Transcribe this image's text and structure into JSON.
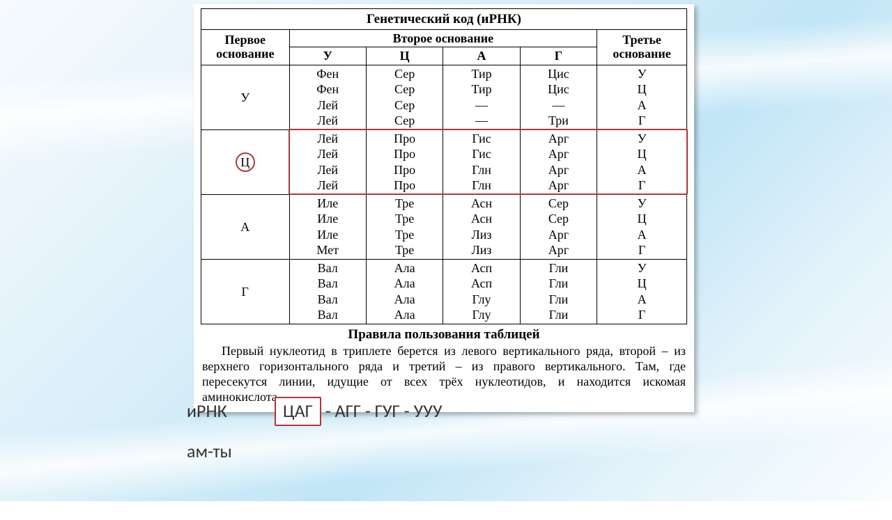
{
  "background": {
    "gradient_start": "#f7fbfe",
    "gradient_mid": "#c0e5f6",
    "gradient_end": "#f9fdff"
  },
  "card": {
    "shadow": "rgba(0,0,0,0.28)",
    "bg": "#ffffff"
  },
  "highlight_color": "#b23535",
  "table": {
    "title": "Генетический код (иРНК)",
    "headers": {
      "first": "Первое основание",
      "second": "Второе основание",
      "third": "Третье основание",
      "second_cols": [
        "У",
        "Ц",
        "А",
        "Г"
      ]
    },
    "rows": [
      {
        "first": "У",
        "highlighted_first": false,
        "highlighted_row": false,
        "cells": {
          "У": [
            "Фен",
            "Фен",
            "Лей",
            "Лей"
          ],
          "Ц": [
            "Сер",
            "Сер",
            "Сер",
            "Сер"
          ],
          "А": [
            "Тир",
            "Тир",
            "—",
            "—"
          ],
          "Г": [
            "Цис",
            "Цис",
            "—",
            "Три"
          ]
        },
        "third": [
          "У",
          "Ц",
          "А",
          "Г"
        ]
      },
      {
        "first": "Ц",
        "highlighted_first": true,
        "highlighted_row": true,
        "cells": {
          "У": [
            "Лей",
            "Лей",
            "Лей",
            "Лей"
          ],
          "Ц": [
            "Про",
            "Про",
            "Про",
            "Про"
          ],
          "А": [
            "Гис",
            "Гис",
            "Глн",
            "Глн"
          ],
          "Г": [
            "Арг",
            "Арг",
            "Арг",
            "Арг"
          ]
        },
        "third": [
          "У",
          "Ц",
          "А",
          "Г"
        ]
      },
      {
        "first": "А",
        "highlighted_first": false,
        "highlighted_row": false,
        "cells": {
          "У": [
            "Иле",
            "Иле",
            "Иле",
            "Мет"
          ],
          "Ц": [
            "Тре",
            "Тре",
            "Тре",
            "Тре"
          ],
          "А": [
            "Асн",
            "Асн",
            "Лиз",
            "Лиз"
          ],
          "Г": [
            "Сер",
            "Сер",
            "Арг",
            "Арг"
          ]
        },
        "third": [
          "У",
          "Ц",
          "А",
          "Г"
        ]
      },
      {
        "first": "Г",
        "highlighted_first": false,
        "highlighted_row": false,
        "cells": {
          "У": [
            "Вал",
            "Вал",
            "Вал",
            "Вал"
          ],
          "Ц": [
            "Ала",
            "Ала",
            "Ала",
            "Ала"
          ],
          "А": [
            "Асп",
            "Асп",
            "Глу",
            "Глу"
          ],
          "Г": [
            "Гли",
            "Гли",
            "Гли",
            "Гли"
          ]
        },
        "third": [
          "У",
          "Ц",
          "А",
          "Г"
        ]
      }
    ]
  },
  "rules": {
    "title": "Правила пользования таблицей",
    "text": "Первый нуклеотид в триплете берется из левого вертикального ряда, второй – из верхнего горизонтального ряда и третий – из правого вертикального. Там, где пересекутся линии, идущие от всех трёх нуклеотидов, и находится искомая аминокислота."
  },
  "answer": {
    "label_rna": "иРНК",
    "label_aa": "ам-ты",
    "codons": [
      "ЦАГ",
      "АГГ",
      "ГУГ",
      "УУУ"
    ],
    "boxed_index": 0,
    "separator": "-"
  },
  "fonts": {
    "table_family": "Times New Roman",
    "table_size_pt": 14,
    "answer_family": "Calibri",
    "answer_size_pt": 20
  }
}
